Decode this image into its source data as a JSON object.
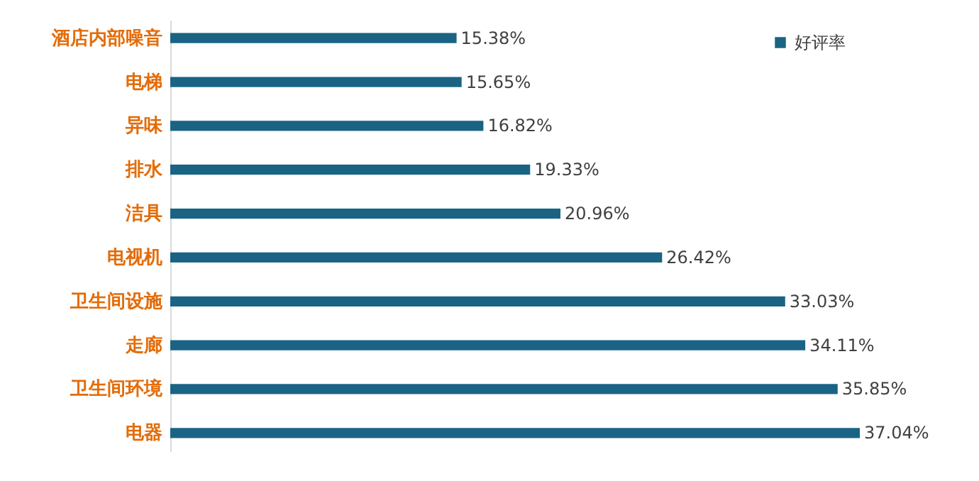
{
  "chart_data": {
    "type": "bar",
    "orientation": "horizontal",
    "categories": [
      "酒店内部噪音",
      "电梯",
      "异味",
      "排水",
      "洁具",
      "电视机",
      "卫生间设施",
      "走廊",
      "卫生间环境",
      "电器"
    ],
    "series": [
      {
        "name": "好评率",
        "color": "#1a6384",
        "values": [
          15.38,
          15.65,
          16.82,
          19.33,
          20.96,
          26.42,
          33.03,
          34.11,
          35.85,
          37.04
        ],
        "value_labels": [
          "15.38%",
          "15.65%",
          "16.82%",
          "19.33%",
          "20.96%",
          "26.42%",
          "33.03%",
          "34.11%",
          "35.85%",
          "37.04%"
        ]
      }
    ],
    "legend": "top right"
  }
}
